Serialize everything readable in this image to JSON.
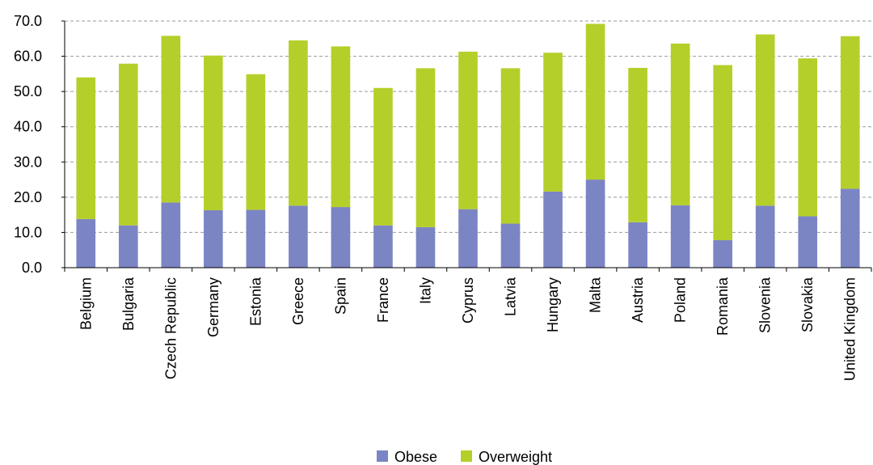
{
  "chart_data": {
    "type": "bar",
    "stacked": true,
    "categories": [
      "Belgium",
      "Bulgaria",
      "Czech Republic",
      "Germany",
      "Estonia",
      "Greece",
      "Spain",
      "France",
      "Italy",
      "Cyprus",
      "Latvia",
      "Hungary",
      "Malta",
      "Austria",
      "Poland",
      "Romania",
      "Slovenia",
      "Slovakia",
      "United Kingdom"
    ],
    "series": [
      {
        "name": "Obese",
        "color": "#7b85c4",
        "values": [
          13.8,
          12.0,
          18.5,
          16.3,
          16.4,
          17.6,
          17.2,
          12.0,
          11.5,
          16.6,
          12.5,
          21.6,
          25.0,
          12.9,
          17.7,
          7.8,
          17.6,
          14.6,
          22.4
        ]
      },
      {
        "name": "Overweight",
        "color": "#b5cf2a",
        "values": [
          40.2,
          45.9,
          47.3,
          43.9,
          38.5,
          46.9,
          45.6,
          39.0,
          45.1,
          44.7,
          44.1,
          39.4,
          44.2,
          43.8,
          45.9,
          49.7,
          48.6,
          44.8,
          43.3
        ]
      }
    ],
    "ylim": [
      0,
      70
    ],
    "yticks": [
      "0.0",
      "10.0",
      "20.0",
      "30.0",
      "40.0",
      "50.0",
      "60.0",
      "70.0"
    ],
    "grid": true,
    "legend_position": "bottom-center",
    "title": "",
    "xlabel": "",
    "ylabel": ""
  }
}
